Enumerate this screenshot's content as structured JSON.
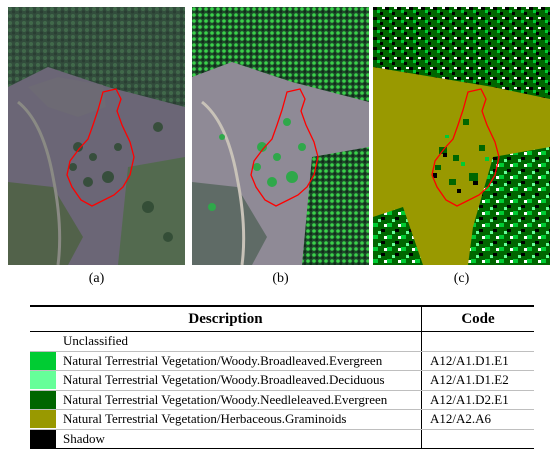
{
  "panels": [
    {
      "label": "(a)",
      "type": "natural-color-satellite-image"
    },
    {
      "label": "(b)",
      "type": "enhanced-satellite-image"
    },
    {
      "label": "(c)",
      "type": "land-cover-classification-map"
    }
  ],
  "outline_color": "#ff0000",
  "table": {
    "headers": {
      "description": "Description",
      "code": "Code"
    },
    "rows": [
      {
        "color": "#ffffff",
        "description": "Unclassified",
        "code": ""
      },
      {
        "color": "#00cc33",
        "description": "Natural Terrestrial Vegetation/Woody.Broadleaved.Evergreen",
        "code": "A12/A1.D1.E1"
      },
      {
        "color": "#66ff99",
        "description": "Natural Terrestrial Vegetation/Woody.Broadleaved.Deciduous",
        "code": "A12/A1.D1.E2"
      },
      {
        "color": "#006600",
        "description": "Natural Terrestrial Vegetation/Woody.Needleleaved.Evergreen",
        "code": "A12/A1.D2.E1"
      },
      {
        "color": "#999900",
        "description": "Natural Terrestrial Vegetation/Herbaceous.Graminoids",
        "code": "A12/A2.A6"
      },
      {
        "color": "#000000",
        "description": "Shadow",
        "code": ""
      }
    ]
  }
}
